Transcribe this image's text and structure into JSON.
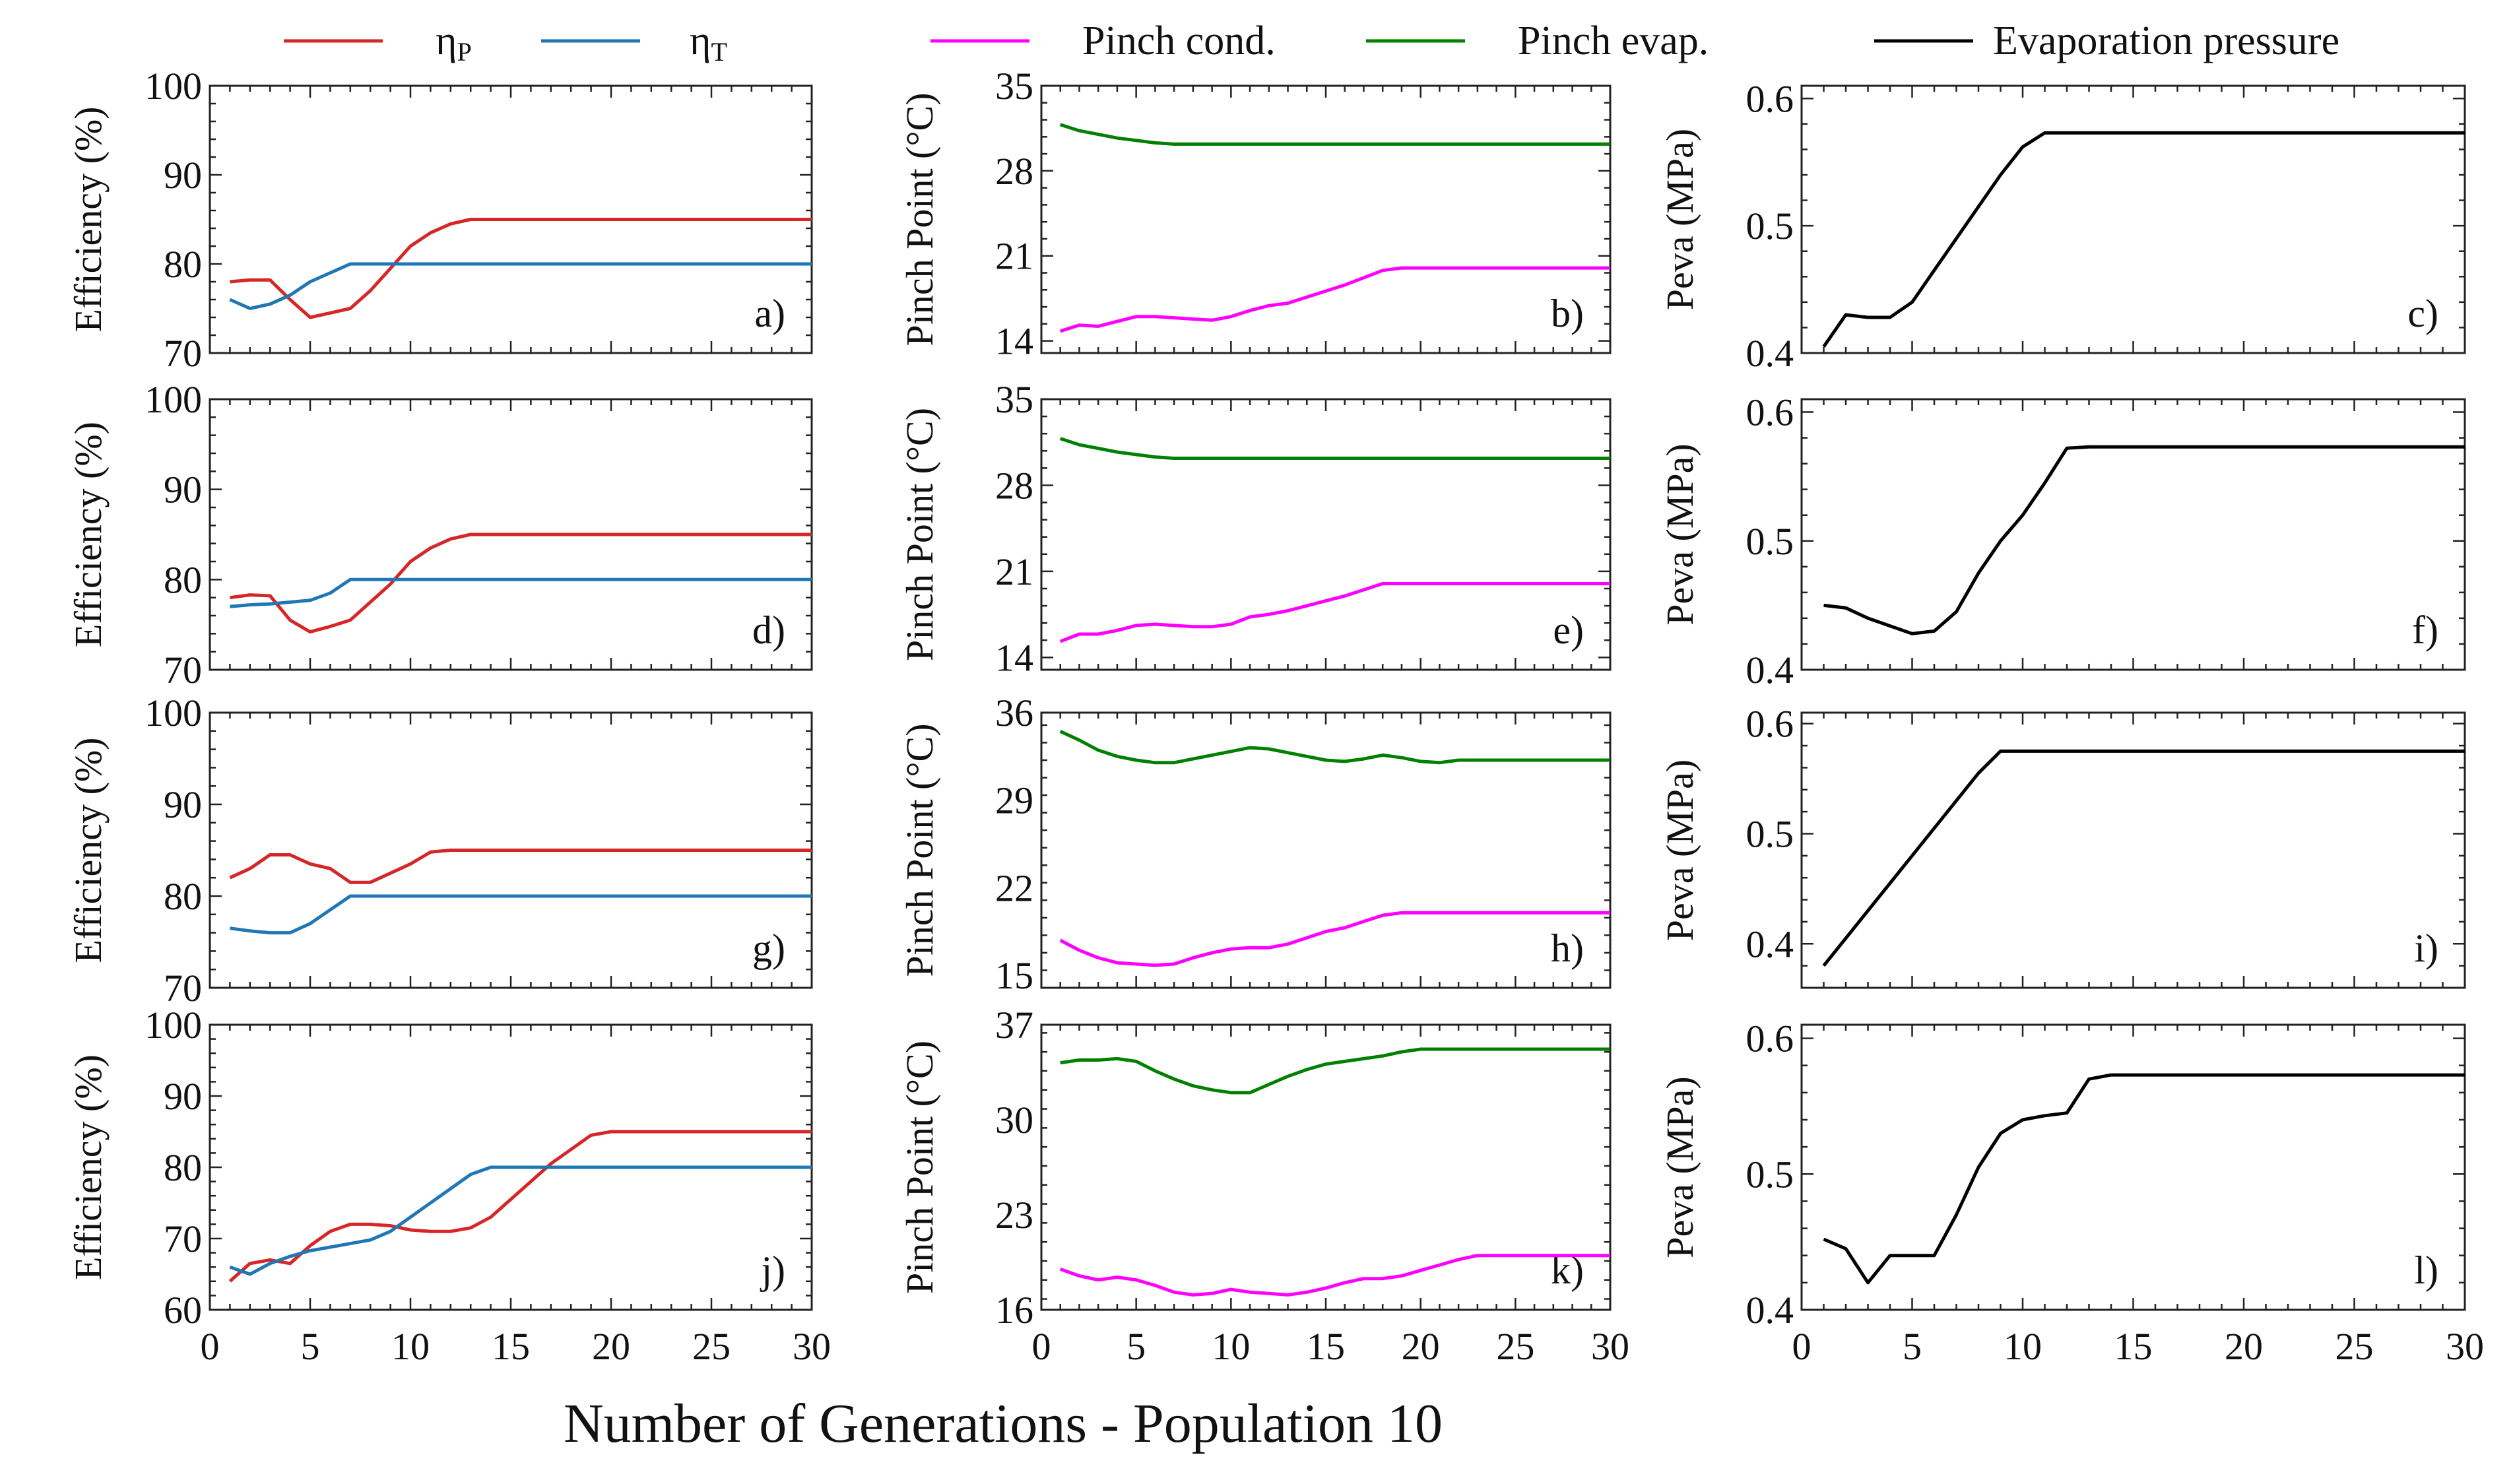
{
  "figure": {
    "xlabel": "Number of Generations - Population 10",
    "x_ticks": [
      0,
      5,
      10,
      15,
      20,
      25,
      30
    ],
    "xlim": [
      0,
      30
    ]
  },
  "legend": {
    "items": [
      {
        "label_main": "η",
        "label_sub": "P",
        "color": "#d62728"
      },
      {
        "label_main": "η",
        "label_sub": "T",
        "color": "#1f77b4"
      },
      {
        "label_main": "Pinch cond.",
        "label_sub": "",
        "color": "#ff00ff"
      },
      {
        "label_main": "Pinch evap.",
        "label_sub": "",
        "color": "#008000"
      },
      {
        "label_main": "Evaporation pressure",
        "label_sub": "",
        "color": "#000000"
      }
    ]
  },
  "chart_data": [
    {
      "panel": "a)",
      "type": "line",
      "ylabel": "Efficiency (%)",
      "ylim": [
        70,
        100
      ],
      "yticks": [
        "70",
        "80",
        "90",
        "100"
      ],
      "ytick_vals": [
        70,
        80,
        90,
        100
      ],
      "series": [
        {
          "name": "ηP",
          "color": "#d62728",
          "x": [
            1,
            2,
            3,
            4,
            5,
            6,
            7,
            8,
            9,
            10,
            11,
            12,
            13,
            14,
            30
          ],
          "values": [
            78,
            78.2,
            78.2,
            76,
            74,
            74.5,
            75,
            77,
            79.5,
            82,
            83.5,
            84.5,
            85,
            85,
            85
          ]
        },
        {
          "name": "ηT",
          "color": "#1f77b4",
          "x": [
            1,
            2,
            3,
            4,
            5,
            6,
            7,
            8,
            30
          ],
          "values": [
            76,
            75,
            75.5,
            76.5,
            78,
            79,
            80,
            80,
            80
          ]
        }
      ]
    },
    {
      "panel": "b)",
      "type": "line",
      "ylabel": "Pinch Point (°C)",
      "ylim": [
        13,
        35
      ],
      "yticks": [
        "14",
        "21",
        "28",
        "35"
      ],
      "ytick_vals": [
        14,
        21,
        28,
        35
      ],
      "series": [
        {
          "name": "Pinch evap.",
          "color": "#008000",
          "x": [
            1,
            2,
            3,
            4,
            5,
            6,
            7,
            30
          ],
          "values": [
            31.8,
            31.3,
            31,
            30.7,
            30.5,
            30.3,
            30.2,
            30.2
          ]
        },
        {
          "name": "Pinch cond.",
          "color": "#ff00ff",
          "x": [
            1,
            2,
            3,
            4,
            5,
            6,
            7,
            8,
            9,
            10,
            11,
            12,
            13,
            14,
            15,
            16,
            17,
            18,
            19,
            30
          ],
          "values": [
            14.8,
            15.3,
            15.2,
            15.6,
            16,
            16,
            15.9,
            15.8,
            15.7,
            16,
            16.5,
            16.9,
            17.1,
            17.6,
            18.1,
            18.6,
            19.2,
            19.8,
            20,
            20
          ]
        }
      ]
    },
    {
      "panel": "c)",
      "type": "line",
      "ylabel": "Peva (MPa)",
      "ylim": [
        0.4,
        0.61
      ],
      "yticks": [
        "0.4",
        "0.5",
        "0.6"
      ],
      "ytick_vals": [
        0.4,
        0.5,
        0.6
      ],
      "series": [
        {
          "name": "Evaporation pressure",
          "color": "#000000",
          "x": [
            1,
            2,
            3,
            4,
            5,
            6,
            7,
            8,
            9,
            10,
            11,
            30
          ],
          "values": [
            0.405,
            0.43,
            0.428,
            0.428,
            0.44,
            0.465,
            0.49,
            0.515,
            0.54,
            0.562,
            0.573,
            0.573
          ]
        }
      ]
    },
    {
      "panel": "d)",
      "type": "line",
      "ylabel": "Efficiency (%)",
      "ylim": [
        70,
        100
      ],
      "yticks": [
        "70",
        "80",
        "90",
        "100"
      ],
      "ytick_vals": [
        70,
        80,
        90,
        100
      ],
      "series": [
        {
          "name": "ηP",
          "color": "#d62728",
          "x": [
            1,
            2,
            3,
            4,
            5,
            6,
            7,
            8,
            9,
            10,
            11,
            12,
            13,
            14,
            30
          ],
          "values": [
            78,
            78.3,
            78.2,
            75.5,
            74.2,
            74.8,
            75.5,
            77.5,
            79.5,
            82,
            83.5,
            84.5,
            85,
            85,
            85
          ]
        },
        {
          "name": "ηT",
          "color": "#1f77b4",
          "x": [
            1,
            2,
            3,
            4,
            5,
            6,
            7,
            8,
            30
          ],
          "values": [
            77,
            77.2,
            77.3,
            77.5,
            77.7,
            78.5,
            80,
            80,
            80
          ]
        }
      ]
    },
    {
      "panel": "e)",
      "type": "line",
      "ylabel": "Pinch Point (°C)",
      "ylim": [
        13,
        35
      ],
      "yticks": [
        "14",
        "21",
        "28",
        "35"
      ],
      "ytick_vals": [
        14,
        21,
        28,
        35
      ],
      "series": [
        {
          "name": "Pinch evap.",
          "color": "#008000",
          "x": [
            1,
            2,
            3,
            4,
            5,
            6,
            7,
            30
          ],
          "values": [
            31.8,
            31.3,
            31,
            30.7,
            30.5,
            30.3,
            30.2,
            30.2
          ]
        },
        {
          "name": "Pinch cond.",
          "color": "#ff00ff",
          "x": [
            1,
            2,
            3,
            4,
            5,
            6,
            7,
            8,
            9,
            10,
            11,
            12,
            13,
            14,
            15,
            16,
            17,
            18,
            19,
            30
          ],
          "values": [
            15.3,
            15.9,
            15.9,
            16.2,
            16.6,
            16.7,
            16.6,
            16.5,
            16.5,
            16.7,
            17.3,
            17.5,
            17.8,
            18.2,
            18.6,
            19,
            19.5,
            20,
            20,
            20
          ]
        }
      ]
    },
    {
      "panel": "f)",
      "type": "line",
      "ylabel": "Peva (MPa)",
      "ylim": [
        0.4,
        0.61
      ],
      "yticks": [
        "0.4",
        "0.5",
        "0.6"
      ],
      "ytick_vals": [
        0.4,
        0.5,
        0.6
      ],
      "series": [
        {
          "name": "Evaporation pressure",
          "color": "#000000",
          "x": [
            1,
            2,
            3,
            4,
            5,
            6,
            7,
            8,
            9,
            10,
            11,
            12,
            13,
            30
          ],
          "values": [
            0.45,
            0.448,
            0.44,
            0.434,
            0.428,
            0.43,
            0.445,
            0.475,
            0.5,
            0.52,
            0.545,
            0.572,
            0.573,
            0.573
          ]
        }
      ]
    },
    {
      "panel": "g)",
      "type": "line",
      "ylabel": "Efficiency (%)",
      "ylim": [
        70,
        100
      ],
      "yticks": [
        "70",
        "80",
        "90",
        "100"
      ],
      "ytick_vals": [
        70,
        80,
        90,
        100
      ],
      "series": [
        {
          "name": "ηP",
          "color": "#d62728",
          "x": [
            1,
            2,
            3,
            4,
            5,
            6,
            7,
            8,
            9,
            10,
            11,
            12,
            30
          ],
          "values": [
            82,
            83,
            84.5,
            84.5,
            83.5,
            83,
            81.5,
            81.5,
            82.5,
            83.5,
            84.8,
            85,
            85
          ]
        },
        {
          "name": "ηT",
          "color": "#1f77b4",
          "x": [
            1,
            2,
            3,
            4,
            5,
            6,
            7,
            8,
            30
          ],
          "values": [
            76.5,
            76.2,
            76,
            76,
            77,
            78.5,
            80,
            80,
            80
          ]
        }
      ]
    },
    {
      "panel": "h)",
      "type": "line",
      "ylabel": "Pinch Point (°C)",
      "ylim": [
        14,
        36
      ],
      "yticks": [
        "15",
        "22",
        "29",
        "36"
      ],
      "ytick_vals": [
        15,
        22,
        29,
        36
      ],
      "series": [
        {
          "name": "Pinch evap.",
          "color": "#008000",
          "x": [
            1,
            2,
            3,
            4,
            5,
            6,
            7,
            8,
            9,
            10,
            11,
            12,
            13,
            14,
            15,
            16,
            17,
            18,
            19,
            20,
            21,
            22,
            23,
            30
          ],
          "values": [
            34.5,
            33.8,
            33,
            32.5,
            32.2,
            32,
            32,
            32.3,
            32.6,
            32.9,
            33.2,
            33.1,
            32.8,
            32.5,
            32.2,
            32.1,
            32.3,
            32.6,
            32.4,
            32.1,
            32,
            32.2,
            32.2,
            32.2
          ]
        },
        {
          "name": "Pinch cond.",
          "color": "#ff00ff",
          "x": [
            1,
            2,
            3,
            4,
            5,
            6,
            7,
            8,
            9,
            10,
            11,
            12,
            13,
            14,
            15,
            16,
            17,
            18,
            19,
            30
          ],
          "values": [
            17.8,
            17,
            16.4,
            16,
            15.9,
            15.8,
            15.9,
            16.4,
            16.8,
            17.1,
            17.2,
            17.2,
            17.5,
            18,
            18.5,
            18.8,
            19.3,
            19.8,
            20,
            20
          ]
        }
      ]
    },
    {
      "panel": "i)",
      "type": "line",
      "ylabel": "Peva (MPa)",
      "ylim": [
        0.36,
        0.61
      ],
      "yticks": [
        "0.4",
        "0.5",
        "0.6"
      ],
      "ytick_vals": [
        0.4,
        0.5,
        0.6
      ],
      "series": [
        {
          "name": "Evaporation pressure",
          "color": "#000000",
          "x": [
            1,
            2,
            3,
            4,
            5,
            6,
            7,
            8,
            9,
            10,
            30
          ],
          "values": [
            0.38,
            0.405,
            0.43,
            0.455,
            0.48,
            0.505,
            0.53,
            0.555,
            0.575,
            0.575,
            0.575
          ]
        }
      ]
    },
    {
      "panel": "j)",
      "type": "line",
      "ylabel": "Efficiency (%)",
      "ylim": [
        60,
        100
      ],
      "yticks": [
        "60",
        "70",
        "80",
        "90",
        "100"
      ],
      "ytick_vals": [
        60,
        70,
        80,
        90,
        100
      ],
      "series": [
        {
          "name": "ηP",
          "color": "#d62728",
          "x": [
            1,
            2,
            3,
            4,
            5,
            6,
            7,
            8,
            9,
            10,
            11,
            12,
            13,
            14,
            15,
            16,
            17,
            18,
            19,
            20,
            30
          ],
          "values": [
            64,
            66.5,
            67,
            66.5,
            69,
            71,
            72,
            72,
            71.8,
            71.2,
            71,
            71,
            71.5,
            73,
            75.5,
            78,
            80.5,
            82.5,
            84.5,
            85,
            85
          ]
        },
        {
          "name": "ηT",
          "color": "#1f77b4",
          "x": [
            1,
            2,
            3,
            4,
            5,
            6,
            7,
            8,
            9,
            10,
            11,
            12,
            13,
            14,
            30
          ],
          "values": [
            66,
            65,
            66.5,
            67.5,
            68.3,
            68.8,
            69.3,
            69.8,
            71,
            73,
            75,
            77,
            79,
            80,
            80
          ]
        }
      ]
    },
    {
      "panel": "k)",
      "type": "line",
      "ylabel": "Pinch Point (°C)",
      "ylim": [
        16,
        37
      ],
      "yticks": [
        "16",
        "23",
        "30",
        "37"
      ],
      "ytick_vals": [
        16,
        23,
        30,
        37
      ],
      "series": [
        {
          "name": "Pinch evap.",
          "color": "#008000",
          "x": [
            1,
            2,
            3,
            4,
            5,
            6,
            7,
            8,
            9,
            10,
            11,
            12,
            13,
            14,
            15,
            16,
            17,
            18,
            19,
            20,
            30
          ],
          "values": [
            34.2,
            34.4,
            34.4,
            34.5,
            34.3,
            33.6,
            33,
            32.5,
            32.2,
            32,
            32,
            32.6,
            33.2,
            33.7,
            34.1,
            34.3,
            34.5,
            34.7,
            35,
            35.2,
            35.2
          ]
        },
        {
          "name": "Pinch cond.",
          "color": "#ff00ff",
          "x": [
            1,
            2,
            3,
            4,
            5,
            6,
            7,
            8,
            9,
            10,
            11,
            12,
            13,
            14,
            15,
            16,
            17,
            18,
            19,
            20,
            21,
            22,
            23,
            30
          ],
          "values": [
            19,
            18.5,
            18.2,
            18.4,
            18.2,
            17.8,
            17.3,
            17.1,
            17.2,
            17.5,
            17.3,
            17.2,
            17.1,
            17.3,
            17.6,
            18,
            18.3,
            18.3,
            18.5,
            18.9,
            19.3,
            19.7,
            20,
            20
          ]
        }
      ]
    },
    {
      "panel": "l)",
      "type": "line",
      "ylabel": "Peva (MPa)",
      "ylim": [
        0.4,
        0.61
      ],
      "yticks": [
        "0.4",
        "0.5",
        "0.6"
      ],
      "ytick_vals": [
        0.4,
        0.5,
        0.6
      ],
      "series": [
        {
          "name": "Evaporation pressure",
          "color": "#000000",
          "x": [
            1,
            2,
            3,
            4,
            5,
            6,
            7,
            8,
            9,
            10,
            11,
            12,
            13,
            14,
            30
          ],
          "values": [
            0.452,
            0.445,
            0.42,
            0.44,
            0.44,
            0.44,
            0.47,
            0.505,
            0.53,
            0.54,
            0.543,
            0.545,
            0.57,
            0.573,
            0.573
          ]
        }
      ]
    }
  ]
}
